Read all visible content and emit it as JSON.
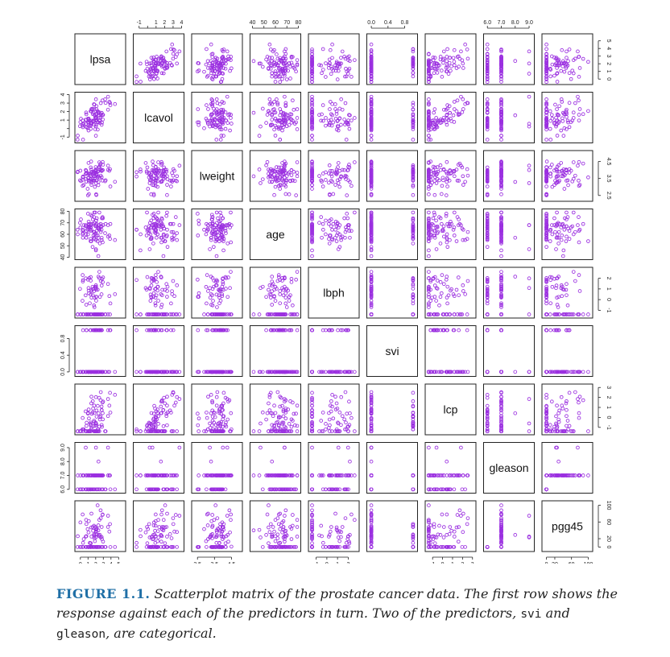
{
  "chart_data": {
    "type": "scatter",
    "kind": "scatterplot-matrix",
    "title": "",
    "point_color": "#9b30e0",
    "variables": [
      {
        "name": "lpsa",
        "range": [
          -0.4,
          5.6
        ],
        "ticks": [
          0,
          1,
          2,
          3,
          4,
          5
        ],
        "tick_labels": [
          "0",
          "1",
          "2",
          "3",
          "4",
          "5"
        ]
      },
      {
        "name": "lcavol",
        "range": [
          -1.4,
          4.0
        ],
        "ticks": [
          -1,
          0,
          1,
          2,
          3,
          4
        ],
        "tick_labels": [
          "-1",
          "",
          "1",
          "2",
          "3",
          "4"
        ]
      },
      {
        "name": "lweight",
        "range": [
          2.3,
          5.0
        ],
        "ticks": [
          2.5,
          3.5,
          4.5
        ],
        "tick_labels": [
          "2.5",
          "3.5",
          "4.5"
        ]
      },
      {
        "name": "age",
        "range": [
          40,
          80
        ],
        "ticks": [
          40,
          50,
          60,
          70,
          80
        ],
        "tick_labels": [
          "40",
          "50",
          "60",
          "70",
          "80"
        ]
      },
      {
        "name": "lbph",
        "range": [
          -1.5,
          2.8
        ],
        "ticks": [
          -1,
          0,
          1,
          2
        ],
        "tick_labels": [
          "-1",
          "0",
          "1",
          "2"
        ]
      },
      {
        "name": "svi",
        "range": [
          -0.05,
          1.05
        ],
        "ticks": [
          0.0,
          0.4,
          0.8
        ],
        "tick_labels": [
          "0.0",
          "0.4",
          "0.8"
        ]
      },
      {
        "name": "lcp",
        "range": [
          -1.5,
          3.1
        ],
        "ticks": [
          -1,
          0,
          1,
          2,
          3
        ],
        "tick_labels": [
          "-1",
          "0",
          "1",
          "2",
          "3"
        ]
      },
      {
        "name": "gleason",
        "range": [
          5.9,
          9.2
        ],
        "ticks": [
          6.0,
          7.0,
          8.0,
          9.0
        ],
        "tick_labels": [
          "6.0",
          "7.0",
          "8.0",
          "9.0"
        ]
      },
      {
        "name": "pgg45",
        "range": [
          -5,
          105
        ],
        "ticks": [
          0,
          20,
          60,
          100
        ],
        "tick_labels": [
          "0",
          "20",
          "60",
          "100"
        ]
      }
    ],
    "axes_placement": {
      "top": [
        1,
        3,
        5,
        7
      ],
      "bottom": [
        0,
        2,
        4,
        6,
        8
      ],
      "left": [
        1,
        3,
        5,
        7
      ],
      "right": [
        0,
        2,
        4,
        6,
        8
      ]
    },
    "grid": false,
    "legend": "none"
  },
  "caption": {
    "label": "FIGURE 1.1.",
    "text_before": "Scatterplot matrix of the prostate cancer data. The first row shows the response against each of the predictors in turn. Two of the predictors,",
    "svi": "svi",
    "and": "and",
    "gleason": "gleason",
    "text_after": ", are categorical."
  }
}
